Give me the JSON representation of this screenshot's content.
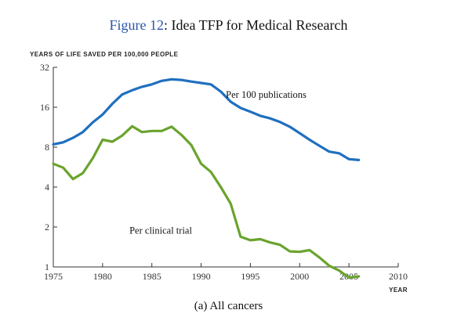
{
  "figure": {
    "number_label": "Figure 12",
    "title_text": ": Idea TFP for Medical Research",
    "subcaption": "(a) All cancers"
  },
  "chart_data": {
    "type": "line",
    "ylabel": "YEARS OF LIFE SAVED PER 100,000 PEOPLE",
    "xlabel": "YEAR",
    "y_scale": "log2",
    "xlim": [
      1975,
      2010
    ],
    "ylim": [
      1,
      32
    ],
    "x_ticks": [
      1975,
      1980,
      1985,
      1990,
      1995,
      2000,
      2005,
      2010
    ],
    "y_ticks": [
      1,
      2,
      4,
      8,
      16,
      32
    ],
    "grid": false,
    "series": [
      {
        "name": "Per 100 publications",
        "color": "#1f6fbf",
        "x": [
          1975,
          1976,
          1977,
          1978,
          1979,
          1980,
          1981,
          1982,
          1983,
          1984,
          1985,
          1986,
          1987,
          1988,
          1989,
          1990,
          1991,
          1992,
          1993,
          1994,
          1995,
          1996,
          1997,
          1998,
          1999,
          2000,
          2001,
          2002,
          2003,
          2004,
          2005,
          2006
        ],
        "y": [
          8.4,
          8.7,
          9.4,
          10.4,
          12.3,
          14.1,
          17.0,
          20.0,
          21.5,
          22.8,
          23.8,
          25.3,
          26.0,
          25.7,
          25.0,
          24.4,
          23.8,
          21.0,
          17.6,
          15.8,
          14.8,
          13.8,
          13.2,
          12.4,
          11.4,
          10.2,
          9.1,
          8.2,
          7.4,
          7.2,
          6.5,
          6.4
        ]
      },
      {
        "name": "Per clinical trial",
        "color": "#6aa32e",
        "x": [
          1975,
          1976,
          1977,
          1978,
          1979,
          1980,
          1981,
          1982,
          1983,
          1984,
          1985,
          1986,
          1987,
          1988,
          1989,
          1990,
          1991,
          1992,
          1993,
          1994,
          1995,
          1996,
          1997,
          1998,
          1999,
          2000,
          2001,
          2002,
          2003,
          2004,
          2005,
          2006
        ],
        "y": [
          6.0,
          5.6,
          4.6,
          5.1,
          6.6,
          9.1,
          8.8,
          9.8,
          11.5,
          10.4,
          10.6,
          10.6,
          11.4,
          9.9,
          8.3,
          6.0,
          5.2,
          4.0,
          3.0,
          1.69,
          1.59,
          1.62,
          1.53,
          1.47,
          1.31,
          1.3,
          1.34,
          1.18,
          1.02,
          0.94,
          0.83,
          0.85
        ]
      }
    ],
    "annotations": [
      {
        "text": "Per 100 publications",
        "x": 1996.6,
        "y": 18.8
      },
      {
        "text": "Per clinical trial",
        "x": 1985.9,
        "y": 1.78
      }
    ]
  }
}
